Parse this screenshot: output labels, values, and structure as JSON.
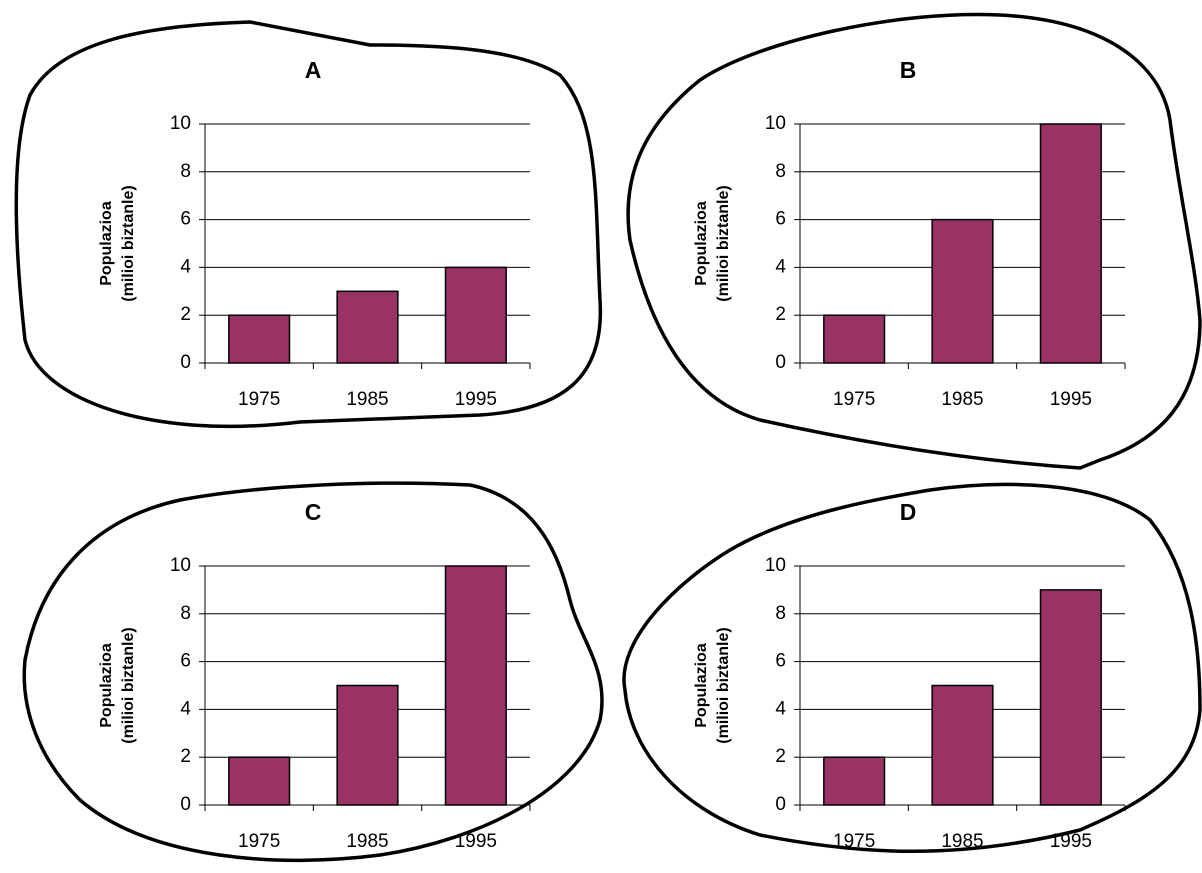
{
  "chart_data": [
    {
      "type": "bar",
      "title": "A",
      "ylabel": [
        "Populazioa",
        "(milioi biztanle)"
      ],
      "categories": [
        "1975",
        "1985",
        "1995"
      ],
      "values": [
        2,
        3,
        4
      ],
      "color": "#993366",
      "ylim": [
        0,
        10
      ],
      "yticks": [
        0,
        2,
        4,
        6,
        8,
        10
      ],
      "grid": true
    },
    {
      "type": "bar",
      "title": "B",
      "ylabel": [
        "Populazioa",
        "(milioi biztanle)"
      ],
      "categories": [
        "1975",
        "1985",
        "1995"
      ],
      "values": [
        2,
        6,
        10
      ],
      "color": "#993366",
      "ylim": [
        0,
        10
      ],
      "yticks": [
        0,
        2,
        4,
        6,
        8,
        10
      ],
      "grid": true
    },
    {
      "type": "bar",
      "title": "C",
      "ylabel": [
        "Populazioa",
        "(milioi biztanle)"
      ],
      "categories": [
        "1975",
        "1985",
        "1995"
      ],
      "values": [
        2,
        5,
        10
      ],
      "color": "#993366",
      "ylim": [
        0,
        10
      ],
      "yticks": [
        0,
        2,
        4,
        6,
        8,
        10
      ],
      "grid": true
    },
    {
      "type": "bar",
      "title": "D",
      "ylabel": [
        "Populazioa",
        "(milioi biztanle)"
      ],
      "categories": [
        "1975",
        "1985",
        "1995"
      ],
      "values": [
        2,
        5,
        9
      ],
      "color": "#993366",
      "ylim": [
        0,
        10
      ],
      "yticks": [
        0,
        2,
        4,
        6,
        8,
        10
      ],
      "grid": true
    }
  ]
}
